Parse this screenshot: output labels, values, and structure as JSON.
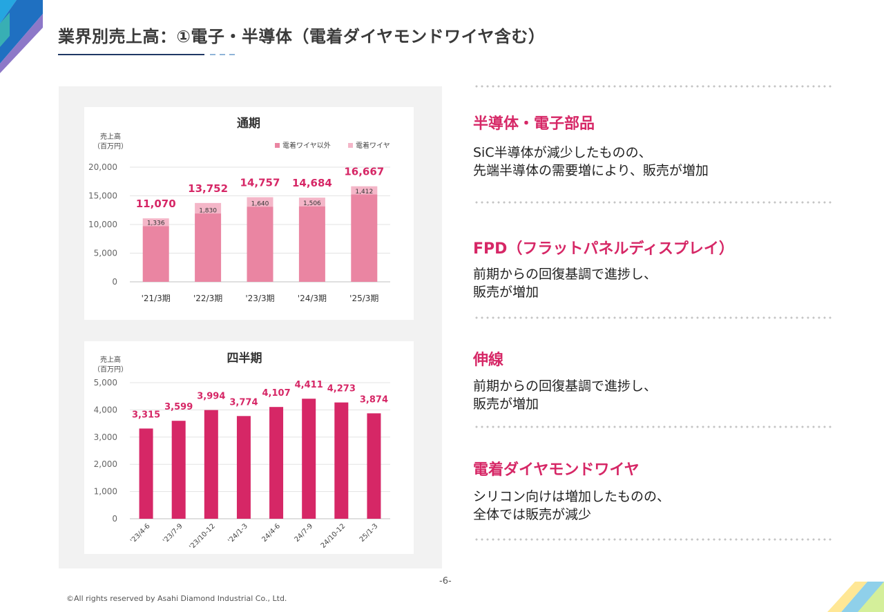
{
  "title": "業界別売上高：①電子・半導体（電着ダイヤモンドワイヤ含む）",
  "colors": {
    "accent": "#d62766",
    "bar_dark": "#d62766",
    "bar_main": "#ea85a2",
    "bar_light": "#f4b6c8"
  },
  "chart_data": [
    {
      "type": "bar",
      "title": "通期",
      "ylabel_lines": [
        "売上高",
        "（百万円）"
      ],
      "ylim": [
        0,
        20000
      ],
      "yticks": [
        "0",
        "5,000",
        "10,000",
        "15,000",
        "20,000"
      ],
      "categories": [
        "'21/3期",
        "'22/3期",
        "'23/3期",
        "'24/3期",
        "'25/3期"
      ],
      "legend": [
        "電着ワイヤ以外",
        "電着ワイヤ"
      ],
      "legend_position": "top-right",
      "stacked": true,
      "series": [
        {
          "name": "電着ワイヤ以外",
          "values": [
            9734,
            11922,
            13117,
            13178,
            15255
          ]
        },
        {
          "name": "電着ワイヤ",
          "values": [
            1336,
            1830,
            1640,
            1506,
            1412
          ]
        }
      ],
      "segment_labels": [
        "1,336",
        "1,830",
        "1,640",
        "1,506",
        "1,412"
      ],
      "totals": [
        11070,
        13752,
        14757,
        14684,
        16667
      ],
      "total_labels": [
        "11,070",
        "13,752",
        "14,757",
        "14,684",
        "16,667"
      ]
    },
    {
      "type": "bar",
      "title": "四半期",
      "ylabel_lines": [
        "売上高",
        "（百万円）"
      ],
      "ylim": [
        0,
        5000
      ],
      "yticks": [
        "0",
        "1,000",
        "2,000",
        "3,000",
        "4,000",
        "5,000"
      ],
      "categories": [
        "'23/4-6",
        "'23/7-9",
        "'23/10-12",
        "'24/1-3",
        "24/4-6",
        "24/7-9",
        "24/10-12",
        "25/1-3"
      ],
      "values": [
        3315,
        3599,
        3994,
        3774,
        4107,
        4411,
        4273,
        3874
      ],
      "value_labels": [
        "3,315",
        "3,599",
        "3,994",
        "3,774",
        "4,107",
        "4,411",
        "4,273",
        "3,874"
      ]
    }
  ],
  "sections": [
    {
      "heading": "半導体・電子部品",
      "lines": [
        "SiC半導体が減少したものの、",
        "先端半導体の需要増により、販売が増加"
      ]
    },
    {
      "heading": "FPD（フラットパネルディスプレイ）",
      "lines": [
        "前期からの回復基調で進捗し、",
        "販売が増加"
      ]
    },
    {
      "heading": "伸線",
      "lines": [
        "前期からの回復基調で進捗し、",
        "販売が増加"
      ]
    },
    {
      "heading": "電着ダイヤモンドワイヤ",
      "lines": [
        "シリコン向けは増加したものの、",
        "全体では販売が減少"
      ]
    }
  ],
  "page_number": "-6-",
  "copyright": "©All rights reserved by Asahi Diamond Industrial Co., Ltd."
}
